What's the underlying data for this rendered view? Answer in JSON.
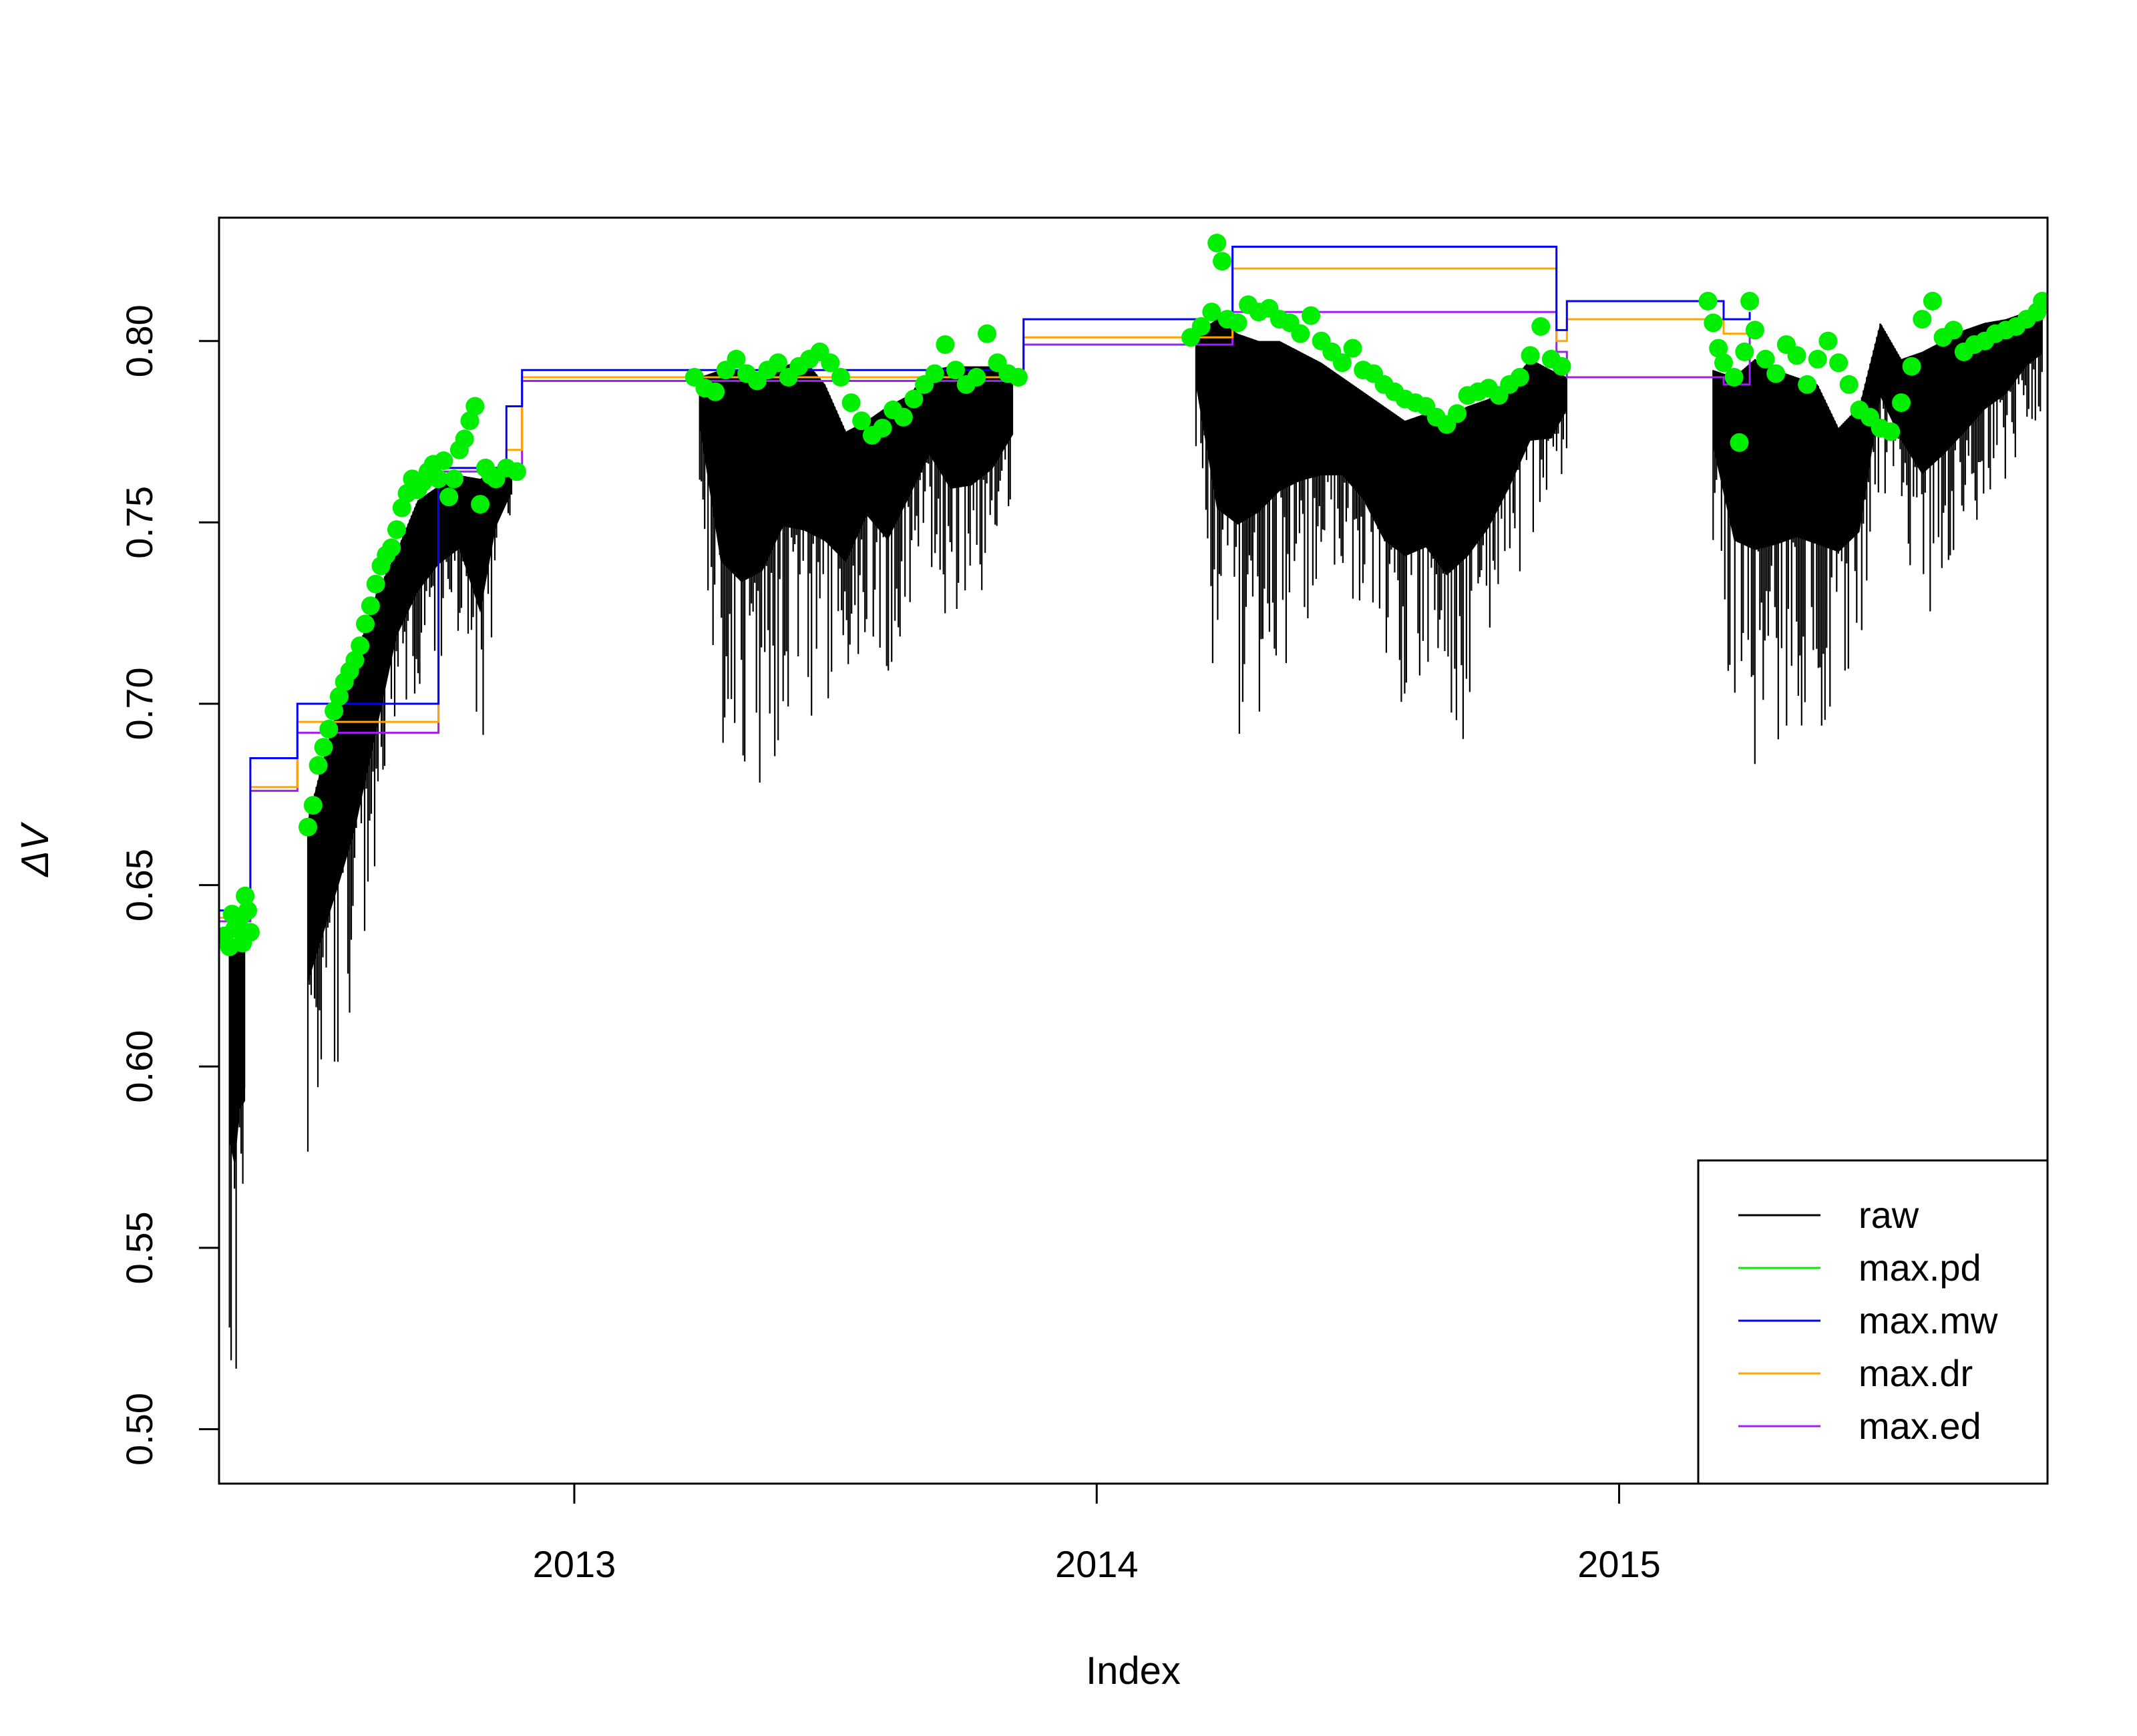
{
  "chart_data": {
    "type": "line",
    "title": "",
    "xlabel": "Index",
    "ylabel": "ΔV",
    "xlim": [
      2012.32,
      2015.82
    ],
    "ylim": [
      0.485,
      0.834
    ],
    "x_ticks": [
      2013,
      2014,
      2015
    ],
    "x_tick_labels": [
      "2013",
      "2014",
      "2015"
    ],
    "y_ticks": [
      0.5,
      0.55,
      0.6,
      0.65,
      0.7,
      0.75,
      0.8
    ],
    "y_tick_labels": [
      "0.50",
      "0.55",
      "0.60",
      "0.65",
      "0.70",
      "0.75",
      "0.80"
    ],
    "grid": false,
    "legend_position": "bottom-right",
    "series": [
      {
        "name": "raw",
        "color": "#000000",
        "style": "envelope",
        "segments": [
          {
            "x": [
              2012.34,
              2012.35,
              2012.36,
              2012.37
            ],
            "upper": [
              0.632,
              0.635,
              0.64,
              0.636
            ],
            "lower": [
              0.515,
              0.496,
              0.525,
              0.535
            ]
          },
          {
            "x": [
              2012.49,
              2012.52,
              2012.55,
              2012.58,
              2012.62,
              2012.66,
              2012.7,
              2012.74,
              2012.78,
              2012.82,
              2012.85,
              2012.88
            ],
            "upper": [
              0.668,
              0.685,
              0.7,
              0.712,
              0.73,
              0.742,
              0.756,
              0.76,
              0.763,
              0.762,
              0.764,
              0.765
            ],
            "lower": [
              0.568,
              0.578,
              0.59,
              0.608,
              0.645,
              0.69,
              0.7,
              0.712,
              0.718,
              0.68,
              0.73,
              0.75
            ]
          },
          {
            "x": [
              2013.24,
              2013.28,
              2013.32,
              2013.36,
              2013.4,
              2013.44,
              2013.48,
              2013.52,
              2013.56,
              2013.6,
              2013.64,
              2013.68,
              2013.72,
              2013.76,
              2013.8,
              2013.84
            ],
            "upper": [
              0.79,
              0.792,
              0.792,
              0.791,
              0.793,
              0.795,
              0.788,
              0.775,
              0.778,
              0.782,
              0.785,
              0.792,
              0.793,
              0.793,
              0.793,
              0.79
            ],
            "lower": [
              0.76,
              0.675,
              0.662,
              0.67,
              0.695,
              0.69,
              0.692,
              0.695,
              0.72,
              0.7,
              0.722,
              0.74,
              0.718,
              0.72,
              0.73,
              0.755
            ]
          },
          {
            "x": [
              2014.19,
              2014.23,
              2014.27,
              2014.31,
              2014.35,
              2014.39,
              2014.43,
              2014.47,
              2014.51,
              2014.55,
              2014.59,
              2014.63,
              2014.67,
              2014.71,
              2014.75,
              2014.79,
              2014.83,
              2014.87,
              2014.9
            ],
            "upper": [
              0.802,
              0.806,
              0.802,
              0.8,
              0.8,
              0.797,
              0.794,
              0.79,
              0.786,
              0.782,
              0.778,
              0.78,
              0.779,
              0.782,
              0.784,
              0.788,
              0.795,
              0.792,
              0.79
            ],
            "lower": [
              0.77,
              0.69,
              0.685,
              0.695,
              0.708,
              0.718,
              0.725,
              0.73,
              0.72,
              0.7,
              0.695,
              0.698,
              0.682,
              0.69,
              0.705,
              0.725,
              0.745,
              0.75,
              0.77
            ]
          },
          {
            "x": [
              2015.18,
              2015.22,
              2015.26,
              2015.3,
              2015.34,
              2015.38,
              2015.42,
              2015.46,
              2015.5,
              2015.54,
              2015.58,
              2015.62,
              2015.66,
              2015.7,
              2015.74,
              2015.78,
              2015.81
            ],
            "upper": [
              0.792,
              0.79,
              0.795,
              0.792,
              0.79,
              0.788,
              0.776,
              0.782,
              0.805,
              0.795,
              0.797,
              0.8,
              0.803,
              0.805,
              0.806,
              0.808,
              0.81
            ],
            "lower": [
              0.745,
              0.69,
              0.678,
              0.685,
              0.692,
              0.69,
              0.7,
              0.705,
              0.76,
              0.745,
              0.722,
              0.73,
              0.74,
              0.752,
              0.76,
              0.775,
              0.78
            ]
          }
        ]
      },
      {
        "name": "max.pd",
        "color": "#00ee00",
        "style": "points",
        "x": [
          2012.33,
          2012.34,
          2012.345,
          2012.35,
          2012.36,
          2012.365,
          2012.37,
          2012.375,
          2012.38,
          2012.49,
          2012.5,
          2012.51,
          2012.52,
          2012.53,
          2012.54,
          2012.55,
          2012.56,
          2012.57,
          2012.58,
          2012.59,
          2012.6,
          2012.61,
          2012.62,
          2012.63,
          2012.64,
          2012.65,
          2012.66,
          2012.67,
          2012.68,
          2012.69,
          2012.7,
          2012.71,
          2012.72,
          2012.73,
          2012.74,
          2012.75,
          2012.76,
          2012.77,
          2012.78,
          2012.79,
          2012.8,
          2012.81,
          2012.82,
          2012.83,
          2012.84,
          2012.85,
          2012.87,
          2012.89,
          2013.23,
          2013.25,
          2013.27,
          2013.29,
          2013.31,
          2013.33,
          2013.35,
          2013.37,
          2013.39,
          2013.41,
          2013.43,
          2013.45,
          2013.47,
          2013.49,
          2013.51,
          2013.53,
          2013.55,
          2013.57,
          2013.59,
          2013.61,
          2013.63,
          2013.65,
          2013.67,
          2013.69,
          2013.71,
          2013.73,
          2013.75,
          2013.77,
          2013.79,
          2013.81,
          2013.83,
          2013.85,
          2014.18,
          2014.2,
          2014.22,
          2014.23,
          2014.24,
          2014.25,
          2014.27,
          2014.29,
          2014.31,
          2014.33,
          2014.35,
          2014.37,
          2014.39,
          2014.41,
          2014.43,
          2014.45,
          2014.47,
          2014.49,
          2014.51,
          2014.53,
          2014.55,
          2014.57,
          2014.59,
          2014.61,
          2014.63,
          2014.65,
          2014.67,
          2014.69,
          2014.71,
          2014.73,
          2014.75,
          2014.77,
          2014.79,
          2014.81,
          2014.83,
          2014.85,
          2014.87,
          2014.89,
          2015.17,
          2015.18,
          2015.19,
          2015.2,
          2015.22,
          2015.23,
          2015.24,
          2015.25,
          2015.26,
          2015.28,
          2015.3,
          2015.32,
          2015.34,
          2015.36,
          2015.38,
          2015.4,
          2015.42,
          2015.44,
          2015.46,
          2015.48,
          2015.5,
          2015.52,
          2015.54,
          2015.56,
          2015.58,
          2015.6,
          2015.62,
          2015.64,
          2015.66,
          2015.68,
          2015.7,
          2015.72,
          2015.74,
          2015.76,
          2015.78,
          2015.8,
          2015.81
        ],
        "y": [
          0.636,
          0.633,
          0.642,
          0.638,
          0.641,
          0.634,
          0.647,
          0.643,
          0.637,
          0.666,
          0.672,
          0.683,
          0.688,
          0.693,
          0.698,
          0.702,
          0.706,
          0.709,
          0.712,
          0.716,
          0.722,
          0.727,
          0.733,
          0.738,
          0.741,
          0.743,
          0.748,
          0.754,
          0.758,
          0.762,
          0.759,
          0.761,
          0.764,
          0.766,
          0.762,
          0.767,
          0.757,
          0.762,
          0.77,
          0.773,
          0.778,
          0.782,
          0.755,
          0.765,
          0.763,
          0.762,
          0.765,
          0.764,
          0.79,
          0.787,
          0.786,
          0.792,
          0.795,
          0.791,
          0.789,
          0.792,
          0.794,
          0.79,
          0.793,
          0.795,
          0.797,
          0.794,
          0.79,
          0.783,
          0.778,
          0.774,
          0.776,
          0.781,
          0.779,
          0.784,
          0.788,
          0.791,
          0.799,
          0.792,
          0.788,
          0.79,
          0.802,
          0.794,
          0.791,
          0.79,
          0.801,
          0.804,
          0.808,
          0.827,
          0.822,
          0.806,
          0.805,
          0.81,
          0.808,
          0.809,
          0.806,
          0.805,
          0.802,
          0.807,
          0.8,
          0.797,
          0.794,
          0.798,
          0.792,
          0.791,
          0.788,
          0.786,
          0.784,
          0.783,
          0.782,
          0.779,
          0.777,
          0.78,
          0.785,
          0.786,
          0.787,
          0.785,
          0.788,
          0.79,
          0.796,
          0.804,
          0.795,
          0.793,
          0.811,
          0.805,
          0.798,
          0.794,
          0.79,
          0.772,
          0.797,
          0.811,
          0.803,
          0.795,
          0.791,
          0.799,
          0.796,
          0.788,
          0.795,
          0.8,
          0.794,
          0.788,
          0.781,
          0.779,
          0.776,
          0.775,
          0.783,
          0.793,
          0.806,
          0.811,
          0.801,
          0.803,
          0.797,
          0.799,
          0.8,
          0.802,
          0.803,
          0.804,
          0.806,
          0.808,
          0.811
        ]
      },
      {
        "name": "max.mw",
        "color": "#0000ff",
        "style": "step",
        "x": [
          2012.32,
          2012.38,
          2012.38,
          2012.47,
          2012.47,
          2012.74,
          2012.74,
          2012.87,
          2012.87,
          2012.9,
          2012.9,
          2013.86,
          2013.86,
          2014.26,
          2014.26,
          2014.88,
          2014.88,
          2014.9,
          2014.9,
          2015.2,
          2015.2,
          2015.25,
          2015.25
        ],
        "y": [
          0.643,
          0.643,
          0.685,
          0.685,
          0.7,
          0.7,
          0.765,
          0.765,
          0.782,
          0.782,
          0.792,
          0.792,
          0.806,
          0.806,
          0.826,
          0.826,
          0.803,
          0.803,
          0.811,
          0.811,
          0.806,
          0.806,
          0.808
        ]
      },
      {
        "name": "max.dr",
        "color": "#ffa500",
        "style": "step",
        "x": [
          2012.32,
          2012.38,
          2012.38,
          2012.47,
          2012.47,
          2012.74,
          2012.74,
          2012.87,
          2012.87,
          2012.9,
          2012.9,
          2013.86,
          2013.86,
          2014.26,
          2014.26,
          2014.88,
          2014.88,
          2014.9,
          2014.9,
          2015.2,
          2015.2,
          2015.25,
          2015.25
        ],
        "y": [
          0.641,
          0.641,
          0.677,
          0.677,
          0.695,
          0.695,
          0.765,
          0.765,
          0.77,
          0.77,
          0.79,
          0.79,
          0.801,
          0.801,
          0.82,
          0.82,
          0.8,
          0.8,
          0.806,
          0.806,
          0.802,
          0.802,
          0.805
        ]
      },
      {
        "name": "max.ed",
        "color": "#a020f0",
        "style": "step",
        "x": [
          2012.32,
          2012.38,
          2012.38,
          2012.47,
          2012.47,
          2012.74,
          2012.74,
          2012.87,
          2012.87,
          2012.9,
          2012.9,
          2013.86,
          2013.86,
          2014.26,
          2014.26,
          2014.88,
          2014.88,
          2014.9,
          2014.9,
          2015.2,
          2015.2,
          2015.25,
          2015.25
        ],
        "y": [
          0.64,
          0.64,
          0.676,
          0.676,
          0.692,
          0.692,
          0.764,
          0.764,
          0.766,
          0.766,
          0.789,
          0.789,
          0.799,
          0.799,
          0.808,
          0.808,
          0.797,
          0.797,
          0.79,
          0.79,
          0.788,
          0.788,
          0.803
        ]
      }
    ]
  }
}
